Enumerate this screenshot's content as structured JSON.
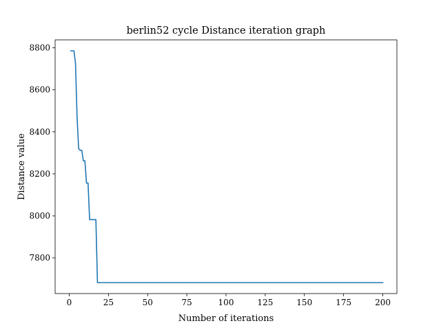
{
  "chart_data": {
    "type": "line",
    "title": "berlin52 cycle Distance iteration graph",
    "xlabel": "Number of iterations",
    "ylabel": "Distance value",
    "xlim": [
      -9,
      209
    ],
    "ylim": [
      7630,
      8838
    ],
    "grid": false,
    "xticks": [
      0,
      25,
      50,
      75,
      100,
      125,
      150,
      175,
      200
    ],
    "yticks": [
      7800,
      8000,
      8200,
      8400,
      8600,
      8800
    ],
    "series": [
      {
        "color": "#1f77b4",
        "breakpoints": [
          [
            1,
            8786
          ],
          [
            3,
            8786
          ],
          [
            4,
            8726
          ],
          [
            5,
            8470
          ],
          [
            6,
            8320
          ],
          [
            7,
            8312
          ],
          [
            8,
            8312
          ],
          [
            9,
            8262
          ],
          [
            10,
            8262
          ],
          [
            11,
            8156
          ],
          [
            12,
            8156
          ],
          [
            13,
            7982
          ],
          [
            17,
            7982
          ],
          [
            18,
            7682
          ],
          [
            200,
            7682
          ]
        ]
      }
    ]
  }
}
